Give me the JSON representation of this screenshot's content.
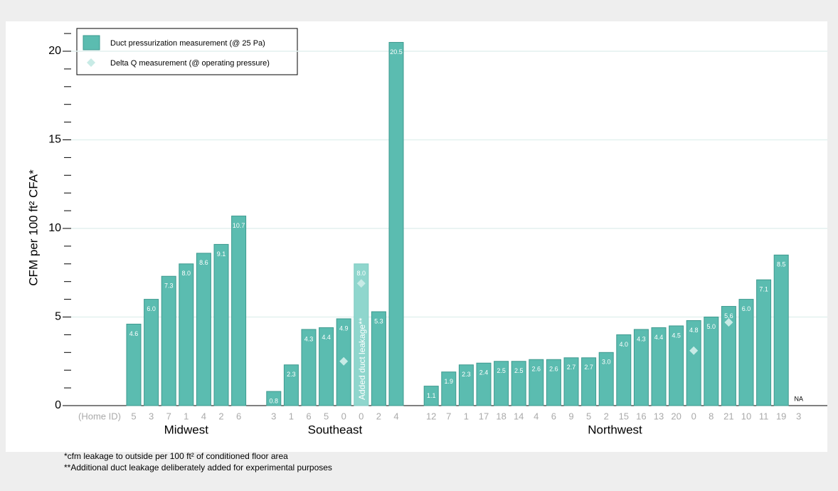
{
  "chart_data": {
    "type": "bar",
    "ylabel": "CFM per 100 ft² CFA*",
    "xlabel": "(Home ID)",
    "ylim": [
      0,
      21.5
    ],
    "yticks": [
      0,
      5,
      10,
      15,
      20
    ],
    "minor_yticks": [
      1,
      2,
      3,
      4,
      6,
      7,
      8,
      9,
      11,
      12,
      13,
      14,
      16,
      17,
      18,
      19,
      21
    ],
    "grid": true,
    "legend": "top-left",
    "series": [
      {
        "name": "Duct pressurization measurement (@ 25 Pa)",
        "color": "#5bbcb0"
      },
      {
        "name": "Delta Q measurement (@ operating pressure)",
        "color": "#c8ebe6"
      }
    ],
    "groups": [
      {
        "name": "Midwest",
        "categories": [
          "5",
          "3",
          "7",
          "1",
          "4",
          "2",
          "6"
        ],
        "values": [
          4.6,
          6.0,
          7.3,
          8.0,
          8.6,
          9.1,
          10.7
        ],
        "value_labels": [
          "4.6",
          "6.0",
          "7.3",
          "8.0",
          "8.6",
          "9.1",
          "10.7"
        ],
        "delta_q": [
          null,
          null,
          null,
          null,
          null,
          null,
          null
        ]
      },
      {
        "name": "Southeast",
        "categories": [
          "3",
          "1",
          "6",
          "5",
          "0",
          "0",
          "2",
          "4"
        ],
        "values": [
          0.8,
          2.3,
          4.3,
          4.4,
          4.9,
          8.0,
          5.3,
          20.5
        ],
        "value_labels": [
          "0.8",
          "2.3",
          "4.3",
          "4.4",
          "4.9",
          "8.0",
          "5.3",
          "20.5"
        ],
        "delta_q": [
          null,
          null,
          null,
          null,
          2.5,
          6.9,
          null,
          null
        ],
        "annotated_bar": {
          "index": 5,
          "text": "Added duct leakage**",
          "color": "#8fd6cd"
        }
      },
      {
        "name": "Northwest",
        "categories": [
          "12",
          "7",
          "1",
          "17",
          "18",
          "14",
          "4",
          "6",
          "9",
          "5",
          "2",
          "15",
          "16",
          "13",
          "20",
          "0",
          "8",
          "21",
          "10",
          "11",
          "19",
          "3"
        ],
        "values": [
          1.1,
          1.9,
          2.3,
          2.4,
          2.5,
          2.5,
          2.6,
          2.6,
          2.7,
          2.7,
          3.0,
          4.0,
          4.3,
          4.4,
          4.5,
          4.8,
          5.0,
          5.6,
          6.0,
          7.1,
          8.5,
          null
        ],
        "value_labels": [
          "1.1",
          "1.9",
          "2.3",
          "2.4",
          "2.5",
          "2.5",
          "2.6",
          "2.6",
          "2.7",
          "2.7",
          "3.0",
          "4.0",
          "4.3",
          "4.4",
          "4.5",
          "4.8",
          "5.0",
          "5.6",
          "6.0",
          "7.1",
          "8.5",
          "NA"
        ],
        "delta_q": [
          null,
          null,
          null,
          null,
          null,
          null,
          null,
          null,
          null,
          null,
          null,
          null,
          null,
          null,
          null,
          3.1,
          null,
          4.7,
          null,
          null,
          null,
          null
        ]
      }
    ],
    "footnotes": [
      "*cfm leakage to outside per 100 ft² of conditioned floor area",
      "**Additional duct leakage deliberately added for experimental purposes"
    ]
  }
}
